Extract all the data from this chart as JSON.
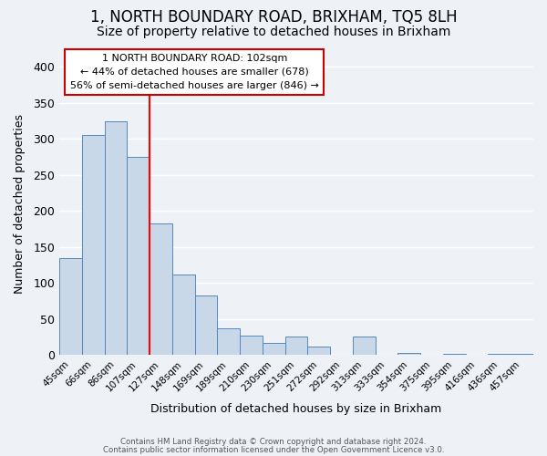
{
  "title": "1, NORTH BOUNDARY ROAD, BRIXHAM, TQ5 8LH",
  "subtitle": "Size of property relative to detached houses in Brixham",
  "xlabel": "Distribution of detached houses by size in Brixham",
  "ylabel": "Number of detached properties",
  "categories": [
    "45sqm",
    "66sqm",
    "86sqm",
    "107sqm",
    "127sqm",
    "148sqm",
    "169sqm",
    "189sqm",
    "210sqm",
    "230sqm",
    "251sqm",
    "272sqm",
    "292sqm",
    "313sqm",
    "333sqm",
    "354sqm",
    "375sqm",
    "395sqm",
    "416sqm",
    "436sqm",
    "457sqm"
  ],
  "values": [
    135,
    305,
    325,
    275,
    182,
    112,
    83,
    37,
    27,
    17,
    25,
    12,
    0,
    25,
    0,
    3,
    0,
    2,
    0,
    2,
    2
  ],
  "bar_color": "#c8d8e8",
  "bar_edge_color": "#5588bb",
  "red_line_index": 3,
  "ylim": [
    0,
    420
  ],
  "yticks": [
    0,
    50,
    100,
    150,
    200,
    250,
    300,
    350,
    400
  ],
  "annotation_line0": "1 NORTH BOUNDARY ROAD: 102sqm",
  "annotation_line1": "← 44% of detached houses are smaller (678)",
  "annotation_line2": "56% of semi-detached houses are larger (846) →",
  "annotation_box_color": "#ffffff",
  "annotation_box_edge": "#cc0000",
  "footer1": "Contains HM Land Registry data © Crown copyright and database right 2024.",
  "footer2": "Contains public sector information licensed under the Open Government Licence v3.0.",
  "background_color": "#eef2f7",
  "grid_color": "#ffffff",
  "title_fontsize": 12,
  "subtitle_fontsize": 10
}
